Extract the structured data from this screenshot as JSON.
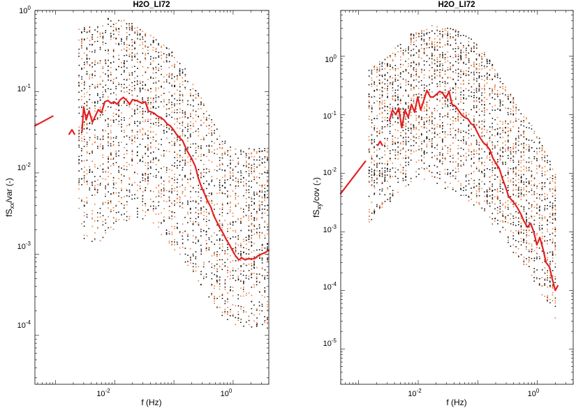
{
  "chart_data": [
    {
      "type": "scatter",
      "title": "H2O_LI72",
      "xlabel": "f (Hz)",
      "ylabel": {
        "main": "fS",
        "sub": "xx",
        "rest": "/var (-)"
      },
      "xscale": "log",
      "yscale": "log",
      "xlim": [
        0.00045,
        4.0
      ],
      "ylim": [
        2.5e-05,
        1.0
      ],
      "x_tick_labels": [
        {
          "value": 0.01,
          "base": "10",
          "exp": "-2"
        },
        {
          "value": 1.0,
          "base": "10",
          "exp": "0"
        }
      ],
      "y_tick_labels": [
        {
          "value": 1.0,
          "base": "10",
          "exp": "0"
        },
        {
          "value": 0.1,
          "base": "10",
          "exp": "-1"
        },
        {
          "value": 0.01,
          "base": "10",
          "exp": "-2"
        },
        {
          "value": 0.001,
          "base": "10",
          "exp": "-3"
        },
        {
          "value": 0.0001,
          "base": "10",
          "exp": "-4"
        }
      ],
      "grid": false,
      "scatter_colors": [
        "#111111",
        "#e87a3a"
      ],
      "scatter_note_envelope": {
        "x": [
          0.0025,
          0.004,
          0.007,
          0.012,
          0.02,
          0.04,
          0.08,
          0.15,
          0.3,
          0.6,
          1.0,
          2.0,
          3.8
        ],
        "y_upper": [
          0.6,
          0.7,
          0.8,
          0.8,
          0.7,
          0.5,
          0.35,
          0.2,
          0.08,
          0.03,
          0.02,
          0.02,
          0.02
        ],
        "y_lower": [
          0.0006,
          0.0004,
          0.0005,
          0.0008,
          0.001,
          0.001,
          0.0005,
          0.0003,
          0.00015,
          7e-05,
          5e-05,
          5e-05,
          5e-05
        ]
      },
      "series": [
        {
          "color": "#e52020",
          "x": [
            0.00045,
            0.0009
          ],
          "y": [
            0.038,
            0.05
          ]
        },
        {
          "color": "#e52020",
          "x": [
            0.0017,
            0.0019,
            0.0021
          ],
          "y": [
            0.03,
            0.034,
            0.03
          ]
        },
        {
          "color": "#e52020",
          "x": [
            0.0028,
            0.003,
            0.0033,
            0.0037,
            0.0042,
            0.0047,
            0.0053,
            0.006,
            0.0068,
            0.0077,
            0.0087,
            0.0098,
            0.011,
            0.0125,
            0.014,
            0.016,
            0.018,
            0.02,
            0.023,
            0.026,
            0.029,
            0.033,
            0.037,
            0.042,
            0.047,
            0.053,
            0.06,
            0.068,
            0.077,
            0.087,
            0.098,
            0.11,
            0.125,
            0.14,
            0.16,
            0.18,
            0.2,
            0.23,
            0.26,
            0.29,
            0.33,
            0.37,
            0.42,
            0.47,
            0.53,
            0.6,
            0.68,
            0.77,
            0.87,
            0.98,
            1.1,
            1.25,
            1.4,
            1.6,
            1.8,
            2.0,
            2.3,
            2.6,
            3.0,
            3.5,
            4.0
          ],
          "y": [
            0.032,
            0.065,
            0.045,
            0.058,
            0.042,
            0.05,
            0.06,
            0.055,
            0.075,
            0.078,
            0.072,
            0.075,
            0.07,
            0.08,
            0.085,
            0.078,
            0.07,
            0.08,
            0.078,
            0.075,
            0.072,
            0.075,
            0.058,
            0.056,
            0.054,
            0.05,
            0.048,
            0.045,
            0.04,
            0.038,
            0.034,
            0.03,
            0.027,
            0.025,
            0.02,
            0.017,
            0.015,
            0.012,
            0.0085,
            0.0068,
            0.0055,
            0.0045,
            0.0038,
            0.003,
            0.0025,
            0.0021,
            0.0018,
            0.0015,
            0.0013,
            0.0011,
            0.00095,
            0.00085,
            0.0009,
            0.00085,
            0.00088,
            0.00087,
            0.00088,
            0.00095,
            0.001,
            0.00105,
            0.00112
          ]
        }
      ]
    },
    {
      "type": "scatter",
      "title": "H2O_LI72",
      "xlabel": "f (Hz)",
      "ylabel": {
        "main": "fS",
        "sub": "xy",
        "rest": "/cov (-)"
      },
      "xscale": "log",
      "yscale": "log",
      "xlim": [
        0.0005,
        4.0
      ],
      "ylim": [
        2.5e-06,
        6.0
      ],
      "x_tick_labels": [
        {
          "value": 0.01,
          "base": "10",
          "exp": "-2"
        },
        {
          "value": 1.0,
          "base": "10",
          "exp": "0"
        }
      ],
      "y_tick_labels": [
        {
          "value": 1.0,
          "base": "10",
          "exp": "0"
        },
        {
          "value": 0.1,
          "base": "10",
          "exp": "-1"
        },
        {
          "value": 0.01,
          "base": "10",
          "exp": "-2"
        },
        {
          "value": 0.001,
          "base": "10",
          "exp": "-3"
        },
        {
          "value": 0.0001,
          "base": "10",
          "exp": "-4"
        },
        {
          "value": 1e-05,
          "base": "10",
          "exp": "-5"
        }
      ],
      "grid": false,
      "scatter_colors": [
        "#111111",
        "#e87a3a"
      ],
      "scatter_note_envelope": {
        "x": [
          0.0015,
          0.003,
          0.006,
          0.01,
          0.02,
          0.04,
          0.08,
          0.15,
          0.3,
          0.6,
          1.0,
          1.5,
          2.0
        ],
        "y_upper": [
          0.6,
          1.0,
          2.0,
          3.0,
          3.5,
          3.0,
          2.0,
          1.0,
          0.3,
          0.1,
          0.05,
          0.02,
          0.01
        ],
        "y_lower": [
          0.0005,
          0.001,
          0.002,
          0.003,
          0.002,
          0.0015,
          0.001,
          0.0005,
          0.0002,
          8e-05,
          4e-05,
          2e-05,
          1e-05
        ]
      },
      "series": [
        {
          "color": "#e52020",
          "x": [
            0.0005,
            0.0013
          ],
          "y": [
            0.0045,
            0.016
          ]
        },
        {
          "color": "#e52020",
          "x": [
            0.0021,
            0.0023,
            0.0025
          ],
          "y": [
            0.03,
            0.035,
            0.03
          ]
        },
        {
          "color": "#e52020",
          "x": [
            0.0033,
            0.0037,
            0.0042,
            0.0047,
            0.0053,
            0.006,
            0.0068,
            0.0077,
            0.0087,
            0.0098,
            0.011,
            0.0125,
            0.014,
            0.016,
            0.018,
            0.02,
            0.023,
            0.026,
            0.029,
            0.033,
            0.037,
            0.042,
            0.047,
            0.053,
            0.06,
            0.068,
            0.077,
            0.087,
            0.098,
            0.11,
            0.125,
            0.14,
            0.16,
            0.18,
            0.2,
            0.23,
            0.26,
            0.29,
            0.33,
            0.37,
            0.42,
            0.47,
            0.53,
            0.6,
            0.68,
            0.77,
            0.87,
            0.98,
            1.1,
            1.25,
            1.4,
            1.6,
            1.8,
            2.0,
            2.2
          ],
          "y": [
            0.08,
            0.12,
            0.1,
            0.13,
            0.06,
            0.12,
            0.09,
            0.15,
            0.11,
            0.2,
            0.12,
            0.18,
            0.26,
            0.2,
            0.2,
            0.22,
            0.25,
            0.23,
            0.19,
            0.25,
            0.15,
            0.14,
            0.12,
            0.1,
            0.09,
            0.085,
            0.07,
            0.065,
            0.05,
            0.04,
            0.033,
            0.03,
            0.025,
            0.018,
            0.015,
            0.012,
            0.008,
            0.006,
            0.004,
            0.0035,
            0.003,
            0.0025,
            0.002,
            0.0015,
            0.0012,
            0.0014,
            0.001,
            0.0006,
            0.0008,
            0.0005,
            0.0003,
            0.00025,
            0.00015,
            0.0001,
            0.00012
          ]
        }
      ]
    }
  ]
}
